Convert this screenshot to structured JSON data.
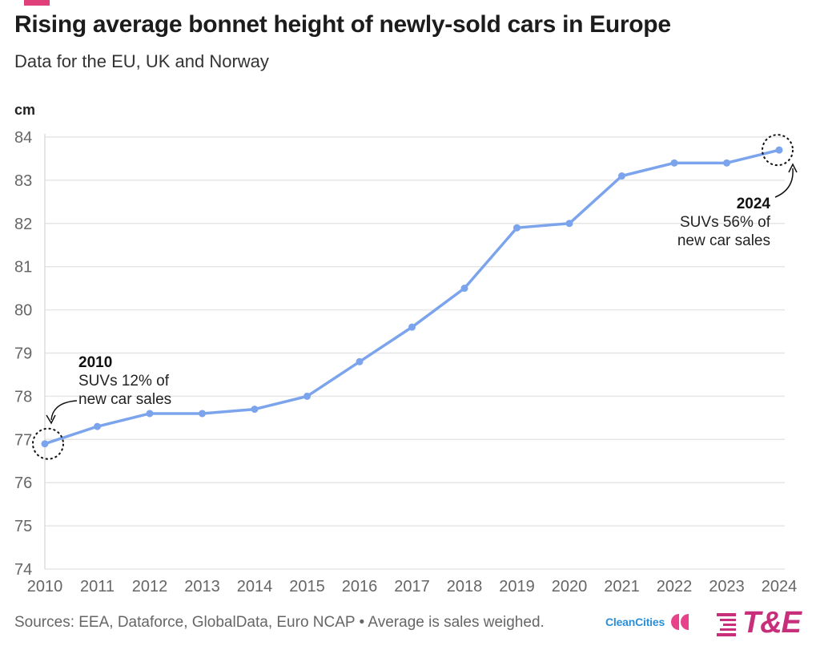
{
  "header": {
    "title": "Rising average bonnet height of newly-sold cars in Europe",
    "subtitle": "Data for the EU, UK and Norway"
  },
  "footer": {
    "source": "Sources: EEA, Dataforce, GlobalData, Euro NCAP • Average is sales weighed."
  },
  "logos": {
    "cleancities_text": "CleanCities",
    "te_text": "T&E"
  },
  "colors": {
    "line": "#7ba4ec",
    "accent": "#e0407a",
    "cleancities_blue": "#2a8fd6",
    "cleancities_pink": "#e8438a",
    "te_pink": "#c72f7a",
    "grid": "#e6e6e6",
    "axis_text": "#666666"
  },
  "chart_data": {
    "type": "line",
    "ylabel": "cm",
    "xlabel": "",
    "ylim": [
      74,
      84
    ],
    "yticks": [
      74,
      75,
      76,
      77,
      78,
      79,
      80,
      81,
      82,
      83,
      84
    ],
    "grid": true,
    "legend": "none",
    "series": [
      {
        "x": [
          2010,
          2011,
          2012,
          2013,
          2014,
          2015,
          2016,
          2017,
          2018,
          2019,
          2020,
          2021,
          2022,
          2023,
          2024
        ],
        "values": [
          76.9,
          77.3,
          77.6,
          77.6,
          77.7,
          78.0,
          78.8,
          79.6,
          80.5,
          81.9,
          82.0,
          83.1,
          83.4,
          83.4,
          83.7
        ]
      }
    ],
    "annotations": [
      {
        "x": 2010,
        "y": 76.9,
        "title": "2010",
        "lines": [
          "SUVs 12% of",
          "new car sales"
        ]
      },
      {
        "x": 2024,
        "y": 83.7,
        "title": "2024",
        "lines": [
          "SUVs 56% of",
          "new car sales"
        ]
      }
    ]
  }
}
